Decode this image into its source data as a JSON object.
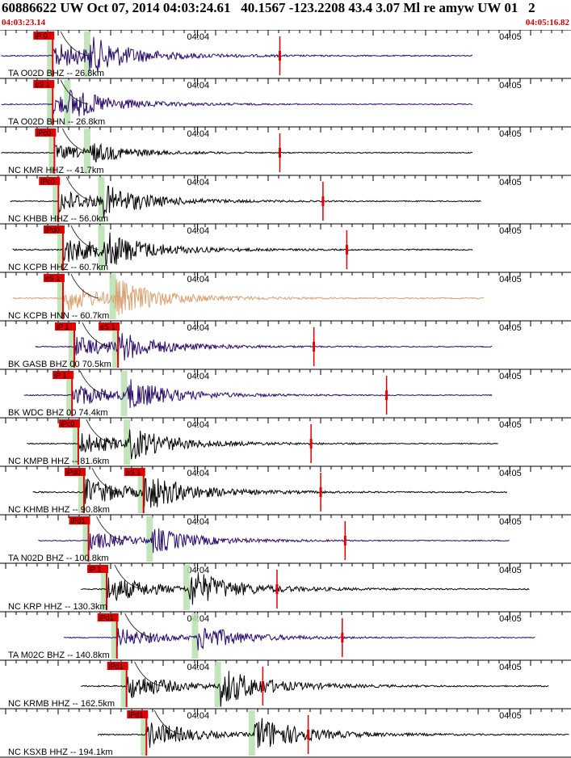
{
  "header": {
    "title": "60886622 UW Oct 07, 2014 04:03:24.61   40.1567 -123.2208 43.4 3.07 Ml re amyw UW 01   2",
    "start_time": "04:03:23.14",
    "end_time": "04:05:16.82"
  },
  "colors": {
    "pick": "#e00000",
    "window": "#b9e0b0",
    "trace_default": "#000000",
    "trace_broadband": "#2a0a6a",
    "trace_accel": "#d9a070"
  },
  "chart_data": {
    "type": "line",
    "x_axis": {
      "start": "04:03:23.14",
      "end": "04:05:16.82",
      "minute_ticks": [
        "04:04",
        "04:05"
      ]
    },
    "series": [
      {
        "label": "TA O02D BHZ -- 26.8km",
        "color": "#2a0a6a",
        "p_pick": "iP 0",
        "s_pick": "",
        "start": 0.0,
        "p": 0.09,
        "s": 0.155,
        "end": 0.83,
        "amp": 1.0,
        "red": 0.49
      },
      {
        "label": "TA O02D BHN -- 26.8km",
        "color": "#2a0a6a",
        "p_pick": "eS 1",
        "s_pick": "",
        "start": 0.0,
        "p": 0.09,
        "s": 0.12,
        "end": 0.83,
        "amp": 0.8,
        "red": 0
      },
      {
        "label": "NC KMR HHZ -- 41.7km",
        "color": "#000000",
        "p_pick": "iPc0",
        "s_pick": "",
        "start": 0.0,
        "p": 0.093,
        "s": 0.155,
        "end": 0.83,
        "amp": 0.55,
        "red": 0.49
      },
      {
        "label": "NC KHBB HHZ -- 56.0km",
        "color": "#000000",
        "p_pick": "iPc0",
        "s_pick": "",
        "start": 0.015,
        "p": 0.1,
        "s": 0.18,
        "end": 0.845,
        "amp": 0.85,
        "red": 0.566
      },
      {
        "label": "NC KCPB HHZ -- 60.7km",
        "color": "#000000",
        "p_pick": "iPd0",
        "s_pick": "",
        "start": 0.02,
        "p": 0.108,
        "s": 0.18,
        "end": 0.83,
        "amp": 1.0,
        "red": 0.608
      },
      {
        "label": "NC KCPB HNN -- 60.7km",
        "color": "#d9a070",
        "p_pick": "eS 1",
        "s_pick": "",
        "start": 0.02,
        "p": 0.108,
        "s": 0.2,
        "end": 0.85,
        "amp": 1.0,
        "red": 0
      },
      {
        "label": "BK GASB BHZ 00 70.5km",
        "color": "#2a0a6a",
        "p_pick": "iP 1",
        "s_pick": "eS 1",
        "start": 0.06,
        "p": 0.128,
        "s": 0.205,
        "end": 0.865,
        "amp": 0.8,
        "red": 0.55
      },
      {
        "label": "BK WDC BHZ 00 74.4km",
        "color": "#2a0a6a",
        "p_pick": "iP 1",
        "s_pick": "",
        "start": 0.04,
        "p": 0.124,
        "s": 0.22,
        "end": 0.865,
        "amp": 0.85,
        "red": 0.678
      },
      {
        "label": "NC KMPB HHZ -- 81.6km",
        "color": "#000000",
        "p_pick": "iPc0",
        "s_pick": "",
        "start": 0.045,
        "p": 0.135,
        "s": 0.225,
        "end": 0.875,
        "amp": 0.85,
        "red": 0.545
      },
      {
        "label": "NC KHMB HHZ -- 90.8km",
        "color": "#000000",
        "p_pick": "iPd0",
        "s_pick": "eS 1",
        "start": 0.055,
        "p": 0.145,
        "s": 0.25,
        "end": 0.89,
        "amp": 1.0,
        "red": 0.562
      },
      {
        "label": "TA N02D BHZ -- 100.8km",
        "color": "#2a0a6a",
        "p_pick": "iPd1",
        "s_pick": "",
        "start": 0.065,
        "p": 0.153,
        "s": 0.265,
        "end": 0.895,
        "amp": 0.7,
        "red": 0.605
      },
      {
        "label": "NC KRP HHZ -- 130.3km",
        "color": "#000000",
        "p_pick": "iP 1",
        "s_pick": "",
        "start": 0.14,
        "p": 0.185,
        "s": 0.33,
        "end": 0.93,
        "amp": 1.0,
        "red": 0.485
      },
      {
        "label": "TA M02C BHZ -- 140.8km",
        "color": "#2a0a6a",
        "p_pick": "iPd1",
        "s_pick": "",
        "start": 0.11,
        "p": 0.203,
        "s": 0.345,
        "end": 0.94,
        "amp": 0.7,
        "red": 0.6
      },
      {
        "label": "NC KRMB HHZ -- 162.5km",
        "color": "#000000",
        "p_pick": "iPd1",
        "s_pick": "",
        "start": 0.14,
        "p": 0.22,
        "s": 0.385,
        "end": 0.965,
        "amp": 1.0,
        "red": 0.46
      },
      {
        "label": "NC KSXB HHZ -- 194.1km",
        "color": "#000000",
        "p_pick": "iPd1",
        "s_pick": "",
        "start": 0.17,
        "p": 0.255,
        "s": 0.445,
        "end": 1.0,
        "amp": 1.0,
        "red": 0.54
      }
    ]
  }
}
